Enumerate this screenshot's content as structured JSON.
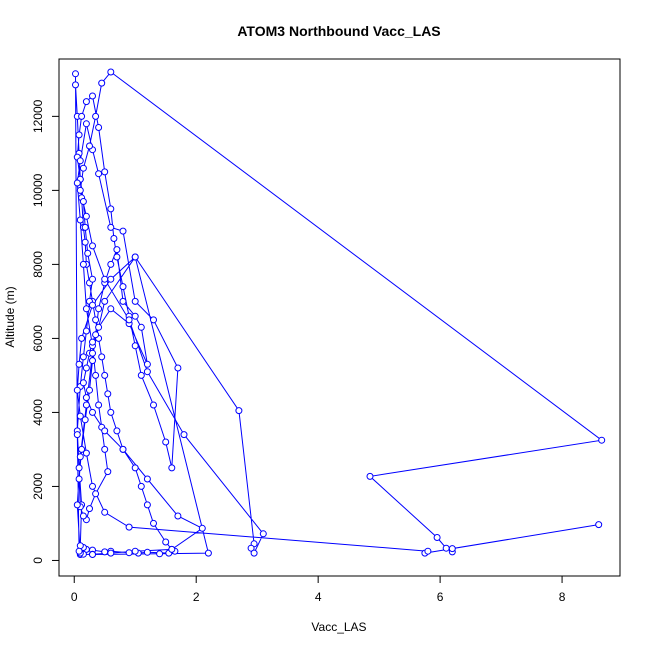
{
  "chart_data": {
    "type": "line",
    "title": "ATOM3 Northbound Vacc_LAS",
    "xlabel": "Vacc_LAS",
    "ylabel": "Altitude (m)",
    "xlim": [
      -0.25,
      8.95
    ],
    "ylim": [
      -420,
      13550
    ],
    "xticks": [
      0,
      2,
      4,
      6,
      8
    ],
    "yticks": [
      0,
      2000,
      4000,
      6000,
      8000,
      10000,
      12000
    ],
    "grid": false,
    "legend": "none",
    "series_color": "#0000ff",
    "series": [
      {
        "x": [
          0.02,
          0.05,
          0.08,
          0.1,
          0.12,
          0.15,
          0.18,
          0.2,
          0.25,
          0.3,
          0.35,
          0.4,
          0.45,
          0.5,
          0.55,
          0.6,
          0.7,
          0.8,
          1.0,
          1.1,
          1.2,
          1.3,
          1.5,
          1.6,
          1.65,
          1.55,
          1.2,
          1.05,
          0.9,
          0.6,
          0.5,
          0.3,
          0.2,
          0.15,
          0.1,
          0.12,
          0.08,
          0.05,
          0.1,
          0.15,
          0.2,
          0.25,
          0.3,
          0.22,
          0.18,
          0.15,
          0.1,
          0.05,
          0.08,
          0.12,
          0.2,
          0.3,
          0.4,
          0.5,
          0.6,
          0.65,
          0.7,
          0.8,
          0.9,
          1.0,
          1.1,
          1.3,
          1.5,
          1.6,
          1.7,
          1.3,
          1.0,
          0.8,
          0.6,
          0.4,
          0.3,
          0.2,
          0.1,
          0.05,
          0.1,
          0.15,
          0.2,
          0.3,
          0.35,
          0.4,
          0.45,
          0.5,
          0.55,
          0.35,
          0.25,
          0.2,
          0.15,
          0.1,
          0.08,
          0.12,
          0.18,
          0.25,
          0.3,
          0.35,
          0.4,
          0.5,
          0.6,
          0.7,
          0.8,
          1.0,
          1.1,
          1.2,
          0.9,
          0.6,
          0.4,
          0.3,
          0.25,
          0.2,
          0.15,
          0.2,
          0.3,
          0.5,
          0.8,
          1.2,
          1.7,
          2.1,
          1.6,
          1.0,
          0.6,
          0.3,
          0.1,
          0.05,
          0.1,
          0.2,
          0.3,
          0.5,
          1.0,
          2.7,
          2.95,
          2.9,
          2.95,
          3.1,
          1.8,
          1.2,
          0.9,
          0.5,
          0.3,
          0.2,
          0.1,
          0.15,
          0.25,
          0.35,
          0.45,
          0.6,
          8.65,
          4.85,
          5.95,
          6.1,
          6.2,
          6.2,
          8.6,
          5.75,
          5.8,
          0.9,
          0.5,
          0.3,
          0.2,
          0.1,
          0.05,
          0.08,
          0.12,
          0.3,
          0.6,
          1.0,
          2.2,
          1.4,
          0.3,
          0.15,
          0.1,
          0.08,
          0.05,
          0.02
        ],
        "y": [
          12850,
          12000,
          11000,
          10300,
          9800,
          9000,
          8600,
          8000,
          7500,
          7000,
          6500,
          6000,
          5500,
          5000,
          4500,
          4000,
          3500,
          3000,
          2500,
          2000,
          1500,
          1000,
          500,
          300,
          250,
          200,
          220,
          200,
          210,
          250,
          230,
          280,
          300,
          350,
          400,
          1500,
          2500,
          3500,
          4700,
          5500,
          6200,
          7000,
          7600,
          8300,
          9000,
          9700,
          10300,
          10900,
          11500,
          12000,
          12400,
          12550,
          11700,
          10500,
          9500,
          8700,
          8200,
          7400,
          6600,
          5800,
          5000,
          4200,
          3200,
          2500,
          5200,
          6500,
          7000,
          8900,
          9000,
          10450,
          11100,
          11800,
          10800,
          10200,
          9200,
          8000,
          6800,
          5800,
          5000,
          4200,
          3600,
          3000,
          2400,
          1800,
          1400,
          1100,
          1200,
          1450,
          2200,
          3000,
          3800,
          4600,
          5400,
          6100,
          6800,
          7500,
          8000,
          8400,
          7000,
          6600,
          6300,
          5300,
          6400,
          6800,
          6300,
          5900,
          5600,
          5200,
          4800,
          4400,
          4000,
          3500,
          3000,
          2200,
          1200,
          870,
          300,
          250,
          200,
          170,
          160,
          1500,
          2800,
          4200,
          5600,
          7000,
          8200,
          4050,
          450,
          330,
          200,
          720,
          3400,
          5100,
          6500,
          7600,
          8500,
          9300,
          10000,
          10600,
          11200,
          12000,
          12900,
          13200,
          3250,
          2270,
          620,
          330,
          230,
          320,
          970,
          200,
          250,
          900,
          1300,
          2000,
          2900,
          3900,
          4600,
          5300,
          6000,
          6900,
          7600,
          8200,
          200,
          180,
          160,
          170,
          200,
          250,
          3400,
          13150
        ]
      }
    ]
  }
}
